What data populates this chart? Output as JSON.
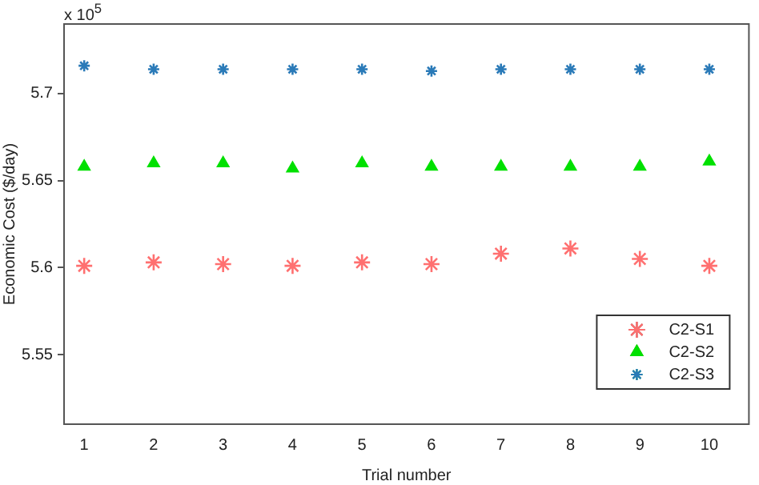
{
  "chart_data": {
    "type": "scatter",
    "xlabel": "Trial number",
    "ylabel": "Economic Cost ($/day)",
    "annotations": [
      "x 10$^{5}$"
    ],
    "x": [
      1,
      2,
      3,
      4,
      5,
      6,
      7,
      8,
      9,
      10
    ],
    "series": [
      {
        "name": "C2-S1",
        "color": "#ff7070",
        "marker": "cross",
        "values": [
          5.601,
          5.603,
          5.602,
          5.601,
          5.603,
          5.602,
          5.608,
          5.611,
          5.605,
          5.601
        ]
      },
      {
        "name": "C2-S2",
        "color": "#00e000",
        "marker": "triangle",
        "values": [
          5.658,
          5.66,
          5.66,
          5.657,
          5.66,
          5.658,
          5.658,
          5.658,
          5.658,
          5.661
        ]
      },
      {
        "name": "C2-S3",
        "color": "#2a7ab8",
        "marker": "cross",
        "values": [
          5.716,
          5.714,
          5.714,
          5.714,
          5.714,
          5.713,
          5.714,
          5.714,
          5.714,
          5.714
        ]
      }
    ],
    "xlim": [
      0.71,
      10.57
    ],
    "xticks": [
      1,
      2,
      3,
      4,
      5,
      6,
      7,
      8,
      9,
      10
    ],
    "ylim": [
      5.51,
      5.74
    ],
    "yticks": [
      5.55,
      5.6,
      5.65,
      5.7
    ],
    "grid": false,
    "legend": "bottom right"
  }
}
